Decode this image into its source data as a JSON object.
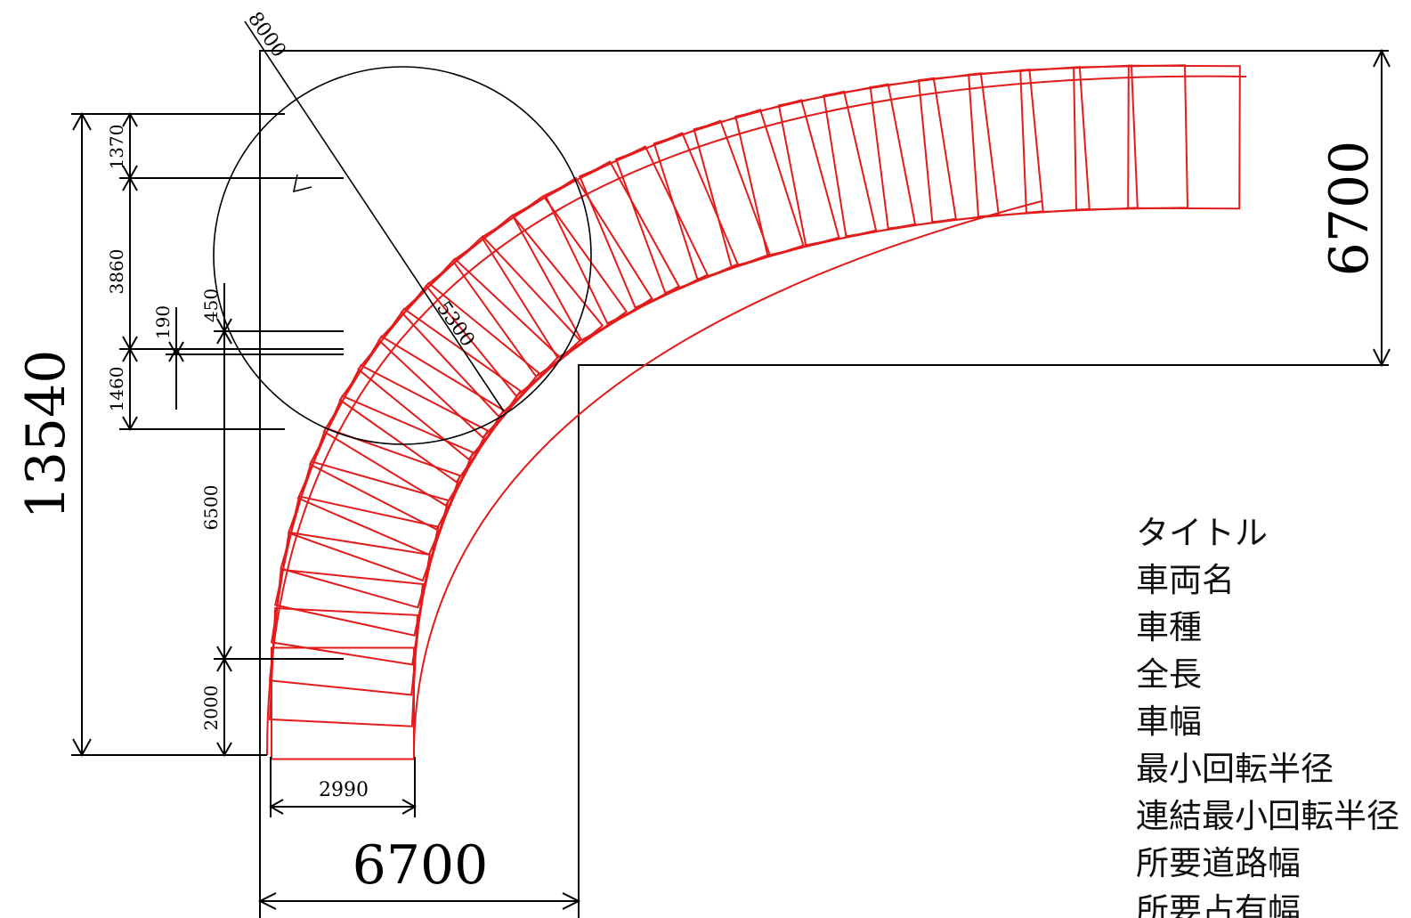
{
  "diagram": {
    "dimensions": {
      "total_height": "13540",
      "right_width": "6700",
      "bottom_width": "6700",
      "vehicle_width": "2990",
      "seg_1370": "1370",
      "seg_3860": "3860",
      "seg_1460": "1460",
      "seg_190": "190",
      "seg_450": "450",
      "seg_6500": "6500",
      "seg_2000": "2000",
      "radius_outer": "8000",
      "radius_inner": "5300"
    },
    "colors": {
      "vehicle_outline": "#e31b1b",
      "dimension_lines": "#000000",
      "background": "#ffffff"
    },
    "turn": {
      "direction": "left-to-right 90° corner",
      "vehicle_positions_shown": 32
    }
  },
  "spec_list": [
    "タイトル",
    "車両名",
    "車種",
    "全長",
    "車幅",
    "最小回転半径",
    "連結最小回転半径",
    "所要道路幅",
    "所要占有幅"
  ]
}
